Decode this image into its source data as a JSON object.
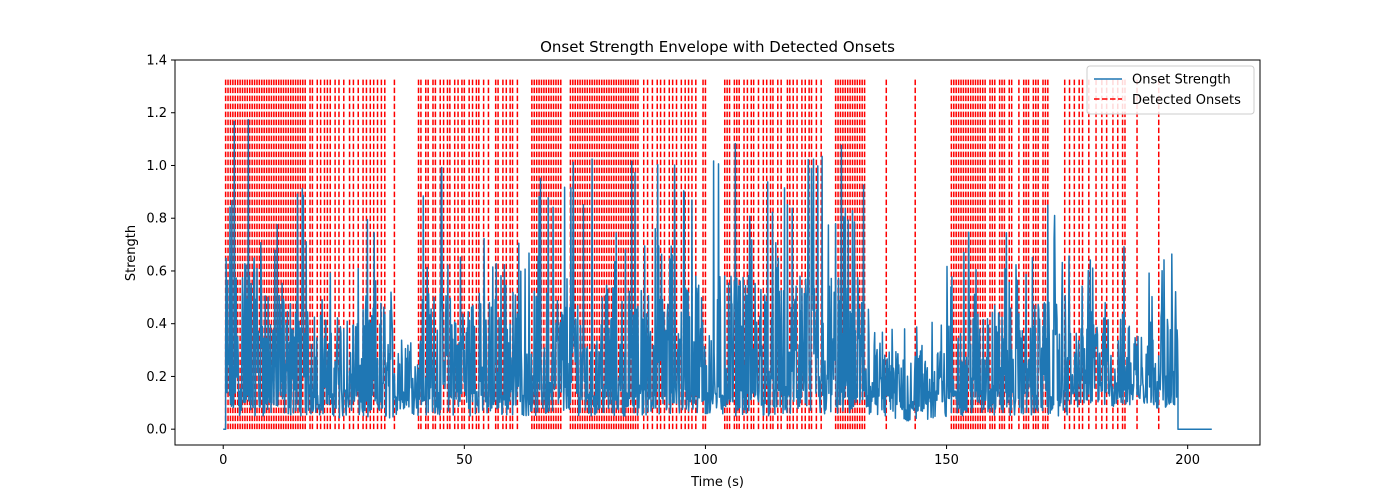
{
  "chart_data": {
    "type": "line",
    "title": "Onset Strength Envelope with Detected Onsets",
    "xlabel": "Time (s)",
    "ylabel": "Strength",
    "xlim": [
      -10,
      215
    ],
    "ylim": [
      -0.06,
      1.4
    ],
    "xticks": [
      0,
      50,
      100,
      150,
      200
    ],
    "yticks": [
      0.0,
      0.2,
      0.4,
      0.6,
      0.8,
      1.0,
      1.2,
      1.4
    ],
    "ytick_labels": [
      "0.0",
      "0.2",
      "0.4",
      "0.6",
      "0.8",
      "1.0",
      "1.2",
      "1.4"
    ],
    "xtick_labels": [
      "0",
      "50",
      "100",
      "150",
      "200"
    ],
    "grid": false,
    "legend_position": "top-right",
    "series": [
      {
        "name": "Onset Strength",
        "color": "#1f77b4",
        "style": "solid",
        "envelope_segments": [
          {
            "x": [
              0,
              0.5
            ],
            "base": 0.0,
            "peak": 0.0
          },
          {
            "x": [
              0.5,
              9
            ],
            "base": 0.05,
            "peak": 1.3
          },
          {
            "x": [
              9,
              17
            ],
            "base": 0.05,
            "peak": 0.95
          },
          {
            "x": [
              17,
              23
            ],
            "base": 0.05,
            "peak": 0.8
          },
          {
            "x": [
              23,
              36
            ],
            "base": 0.04,
            "peak": 0.8
          },
          {
            "x": [
              36,
              40
            ],
            "base": 0.05,
            "peak": 0.55
          },
          {
            "x": [
              40,
              72
            ],
            "base": 0.05,
            "peak": 1.0
          },
          {
            "x": [
              72,
              103
            ],
            "base": 0.05,
            "peak": 1.05
          },
          {
            "x": [
              103,
              134
            ],
            "base": 0.05,
            "peak": 1.13
          },
          {
            "x": [
              134,
              150
            ],
            "base": 0.03,
            "peak": 0.45
          },
          {
            "x": [
              150,
              175
            ],
            "base": 0.05,
            "peak": 0.88
          },
          {
            "x": [
              175,
              198
            ],
            "base": 0.08,
            "peak": 0.7
          },
          {
            "x": [
              198,
              205
            ],
            "base": 0.0,
            "peak": 0.0
          }
        ]
      },
      {
        "name": "Detected Onsets",
        "color": "#ff0000",
        "style": "dashed",
        "line_height": 1.33,
        "onset_times": [
          0.5,
          1,
          1.5,
          2,
          2.5,
          3,
          3.5,
          4,
          4.5,
          5,
          5.5,
          6,
          6.5,
          7,
          7.5,
          8,
          8.5,
          9,
          9.5,
          10,
          10.5,
          11,
          11.5,
          12,
          12.5,
          13,
          13.5,
          14,
          14.5,
          15,
          15.5,
          16,
          16.5,
          17,
          18,
          18.5,
          19.5,
          20.2,
          21,
          21.6,
          22.2,
          23.2,
          24,
          25,
          26.2,
          27,
          28,
          29,
          29.7,
          30.5,
          31.2,
          32,
          32.8,
          33.5,
          35.5,
          40.5,
          41,
          42,
          42.5,
          43.5,
          44,
          45,
          45.7,
          46.5,
          47,
          48,
          48.7,
          49.5,
          50,
          51,
          51.7,
          52.5,
          53,
          54,
          55,
          56.5,
          57,
          58,
          58.7,
          59.5,
          60,
          61,
          64,
          64.5,
          65,
          65.5,
          66,
          66.5,
          67,
          67.5,
          68,
          68.5,
          69,
          69.5,
          70,
          72,
          72.5,
          73,
          73.5,
          74,
          74.5,
          75,
          75.5,
          76,
          76.5,
          77,
          77.5,
          78,
          78.5,
          79,
          79.5,
          80,
          80.5,
          81,
          81.5,
          82,
          82.5,
          83,
          83.5,
          84,
          84.5,
          85,
          85.5,
          86,
          87.2,
          88,
          89,
          90,
          90.7,
          91.5,
          92.5,
          93.2,
          94,
          95,
          95.8,
          96.5,
          97.2,
          98,
          99.5,
          100,
          104,
          104.5,
          105,
          106,
          106.5,
          107,
          108,
          108.7,
          109.5,
          110,
          111,
          112,
          112.7,
          113.5,
          114,
          115,
          115.7,
          117,
          117.5,
          118.2,
          119,
          120,
          120.7,
          121.5,
          122,
          123,
          124,
          127,
          127.5,
          128,
          128.5,
          129,
          129.5,
          130,
          130.5,
          131,
          131.5,
          132,
          132.5,
          133,
          137.5,
          143.5,
          151,
          151.5,
          152,
          152.5,
          153,
          153.5,
          154,
          154.5,
          155,
          155.5,
          156,
          156.5,
          157,
          157.5,
          158,
          159,
          159.5,
          160,
          161,
          161.5,
          162,
          163,
          163.5,
          165,
          166,
          166.5,
          167,
          168,
          168.5,
          169,
          170,
          170.5,
          171,
          174.5,
          175.5,
          176.5,
          177.5,
          178.2,
          179.5,
          181,
          182.2,
          183.2,
          184.5,
          185.5,
          186.5,
          187,
          189.5,
          194
        ]
      }
    ]
  }
}
